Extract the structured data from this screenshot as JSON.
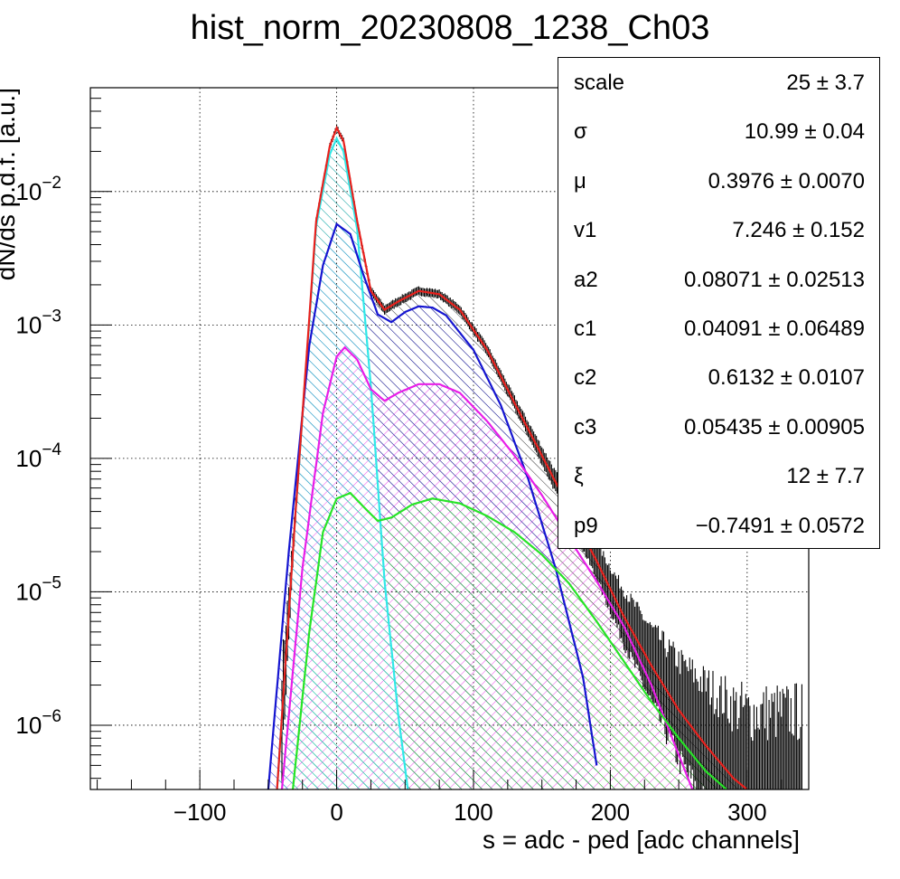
{
  "chart_data": {
    "type": "histogram-fit",
    "title": "hist_norm_20230808_1238_Ch03",
    "xlabel": "s = adc - ped [adc channels]",
    "ylabel": "dN/ds p.d.f. [a.u.]",
    "xlim": [
      -180,
      345
    ],
    "ylim": [
      3.3e-07,
      0.06
    ],
    "yscale": "log",
    "grid": true,
    "x_ticks": [
      -100,
      0,
      100,
      200,
      300
    ],
    "y_ticks": [
      {
        "value": 1e-06,
        "base": "10",
        "exp": "−6"
      },
      {
        "value": 1e-05,
        "base": "10",
        "exp": "−5"
      },
      {
        "value": 0.0001,
        "base": "10",
        "exp": "−4"
      },
      {
        "value": 0.001,
        "base": "10",
        "exp": "−3"
      },
      {
        "value": 0.01,
        "base": "10",
        "exp": "−2"
      }
    ],
    "stats": [
      {
        "name": "scale",
        "value": "25 ± 3.7"
      },
      {
        "name": "σ",
        "value": "10.99 ± 0.04"
      },
      {
        "name": "μ",
        "value": "0.3976 ± 0.0070"
      },
      {
        "name": "v1",
        "value": "7.246 ± 0.152"
      },
      {
        "name": "a2",
        "value": "0.08071 ± 0.02513"
      },
      {
        "name": "c1",
        "value": "0.04091 ± 0.06489"
      },
      {
        "name": "c2",
        "value": "0.6132 ± 0.0107"
      },
      {
        "name": "c3",
        "value": "0.05435 ± 0.00905"
      },
      {
        "name": "ξ",
        "value": "12 ± 7.7"
      },
      {
        "name": "p9",
        "value": "−0.7491 ± 0.0572"
      }
    ],
    "series": [
      {
        "key": "total",
        "color": "#e8201c",
        "x": [
          -45,
          -30,
          -15,
          -5,
          0,
          5,
          15,
          25,
          35,
          45,
          60,
          75,
          90,
          110,
          130,
          150,
          170,
          190,
          210,
          230,
          250,
          270,
          290,
          300
        ],
        "y": [
          2e-07,
          4e-05,
          0.006,
          0.022,
          0.03,
          0.024,
          0.006,
          0.0018,
          0.0013,
          0.0015,
          0.0018,
          0.0017,
          0.0013,
          0.00065,
          0.00026,
          0.000105,
          4.2e-05,
          1.7e-05,
          6.5e-06,
          2.8e-06,
          1.3e-06,
          7e-07,
          4e-07,
          3.3e-07
        ]
      },
      {
        "key": "pedestal",
        "color": "#30e8e8",
        "x": [
          -45,
          -30,
          -15,
          -5,
          0,
          5,
          15,
          25,
          35,
          45,
          52
        ],
        "y": [
          2e-07,
          4e-05,
          0.0055,
          0.019,
          0.025,
          0.02,
          0.0052,
          0.00035,
          1.2e-05,
          1.2e-06,
          3.3e-07
        ]
      },
      {
        "key": "1pe",
        "color": "#1515d0",
        "x": [
          -50,
          -35,
          -20,
          -10,
          0,
          10,
          20,
          30,
          40,
          50,
          60,
          70,
          80,
          100,
          120,
          140,
          160,
          180,
          190
        ],
        "y": [
          3.3e-07,
          2e-05,
          0.0007,
          0.0028,
          0.0057,
          0.0048,
          0.0023,
          0.0012,
          0.00105,
          0.00125,
          0.00138,
          0.00135,
          0.00118,
          0.00065,
          0.00025,
          7e-05,
          1.5e-05,
          2.3e-06,
          5e-07
        ]
      },
      {
        "key": "2pe",
        "color": "#e81ee8",
        "x": [
          -40,
          -25,
          -10,
          0,
          6,
          15,
          25,
          35,
          45,
          60,
          75,
          90,
          110,
          130,
          150,
          170,
          190,
          210,
          230,
          250,
          260
        ],
        "y": [
          3.3e-07,
          1.5e-05,
          0.00022,
          0.00058,
          0.00068,
          0.00055,
          0.00033,
          0.00027,
          0.00031,
          0.00036,
          0.00036,
          0.00031,
          0.00019,
          0.000105,
          5.3e-05,
          2.5e-05,
          1.2e-05,
          5.5e-06,
          2e-06,
          6e-07,
          3.3e-07
        ]
      },
      {
        "key": "3pe",
        "color": "#27e427",
        "x": [
          -32,
          -20,
          -10,
          0,
          10,
          20,
          30,
          40,
          55,
          70,
          90,
          110,
          130,
          150,
          170,
          190,
          210,
          230,
          250,
          270,
          285
        ],
        "y": [
          3.3e-07,
          5e-06,
          2.8e-05,
          5e-05,
          5.5e-05,
          4.3e-05,
          3.4e-05,
          3.6e-05,
          4.5e-05,
          5e-05,
          4.6e-05,
          3.7e-05,
          2.8e-05,
          1.9e-05,
          1.15e-05,
          6e-06,
          3e-06,
          1.5e-06,
          8e-07,
          4.5e-07,
          3.3e-07
        ]
      }
    ]
  }
}
